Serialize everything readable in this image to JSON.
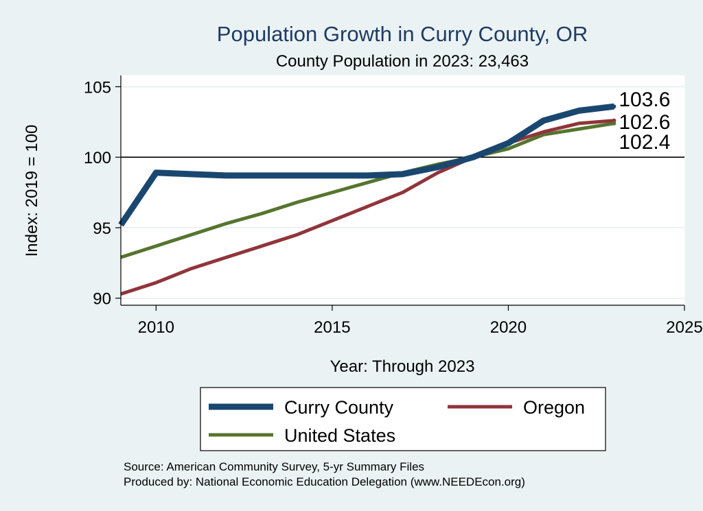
{
  "chart_data": {
    "type": "line",
    "title": "Population Growth in Curry County, OR",
    "subtitle": "County Population in 2023: 23,463",
    "xlabel": "Year: Through 2023",
    "ylabel": "Index: 2019 = 100",
    "xlim": [
      2009,
      2025
    ],
    "ylim": [
      89.5,
      105.8
    ],
    "x_ticks": [
      2010,
      2015,
      2020,
      2025
    ],
    "y_ticks": [
      90,
      95,
      100,
      105
    ],
    "reference_line": 100,
    "grid": true,
    "legend_position": "bottom",
    "x": [
      2009,
      2010,
      2011,
      2012,
      2013,
      2014,
      2015,
      2016,
      2017,
      2018,
      2019,
      2020,
      2021,
      2022,
      2023
    ],
    "series": [
      {
        "name": "Curry  County",
        "color": "#1a476f",
        "width": 9,
        "values": [
          95.2,
          98.9,
          98.8,
          98.7,
          98.7,
          98.7,
          98.7,
          98.7,
          98.8,
          99.3,
          100.0,
          101.0,
          102.6,
          103.3,
          103.6
        ],
        "end_label": "103.6"
      },
      {
        "name": "Oregon",
        "color": "#90353b",
        "width": 5,
        "values": [
          90.3,
          91.1,
          92.1,
          92.9,
          93.7,
          94.5,
          95.5,
          96.5,
          97.5,
          98.9,
          100.0,
          101.0,
          101.8,
          102.4,
          102.6
        ],
        "end_label": "102.6"
      },
      {
        "name": "United States",
        "color": "#55752f",
        "width": 5,
        "values": [
          92.9,
          93.7,
          94.5,
          95.3,
          96.0,
          96.8,
          97.5,
          98.2,
          98.9,
          99.5,
          100.0,
          100.6,
          101.6,
          102.0,
          102.4
        ],
        "end_label": "102.4"
      }
    ],
    "notes": [
      "Source: American Community Survey, 5-yr Summary Files",
      "Produced by: National Economic Education Delegation (www.NEEDEcon.org)"
    ]
  }
}
